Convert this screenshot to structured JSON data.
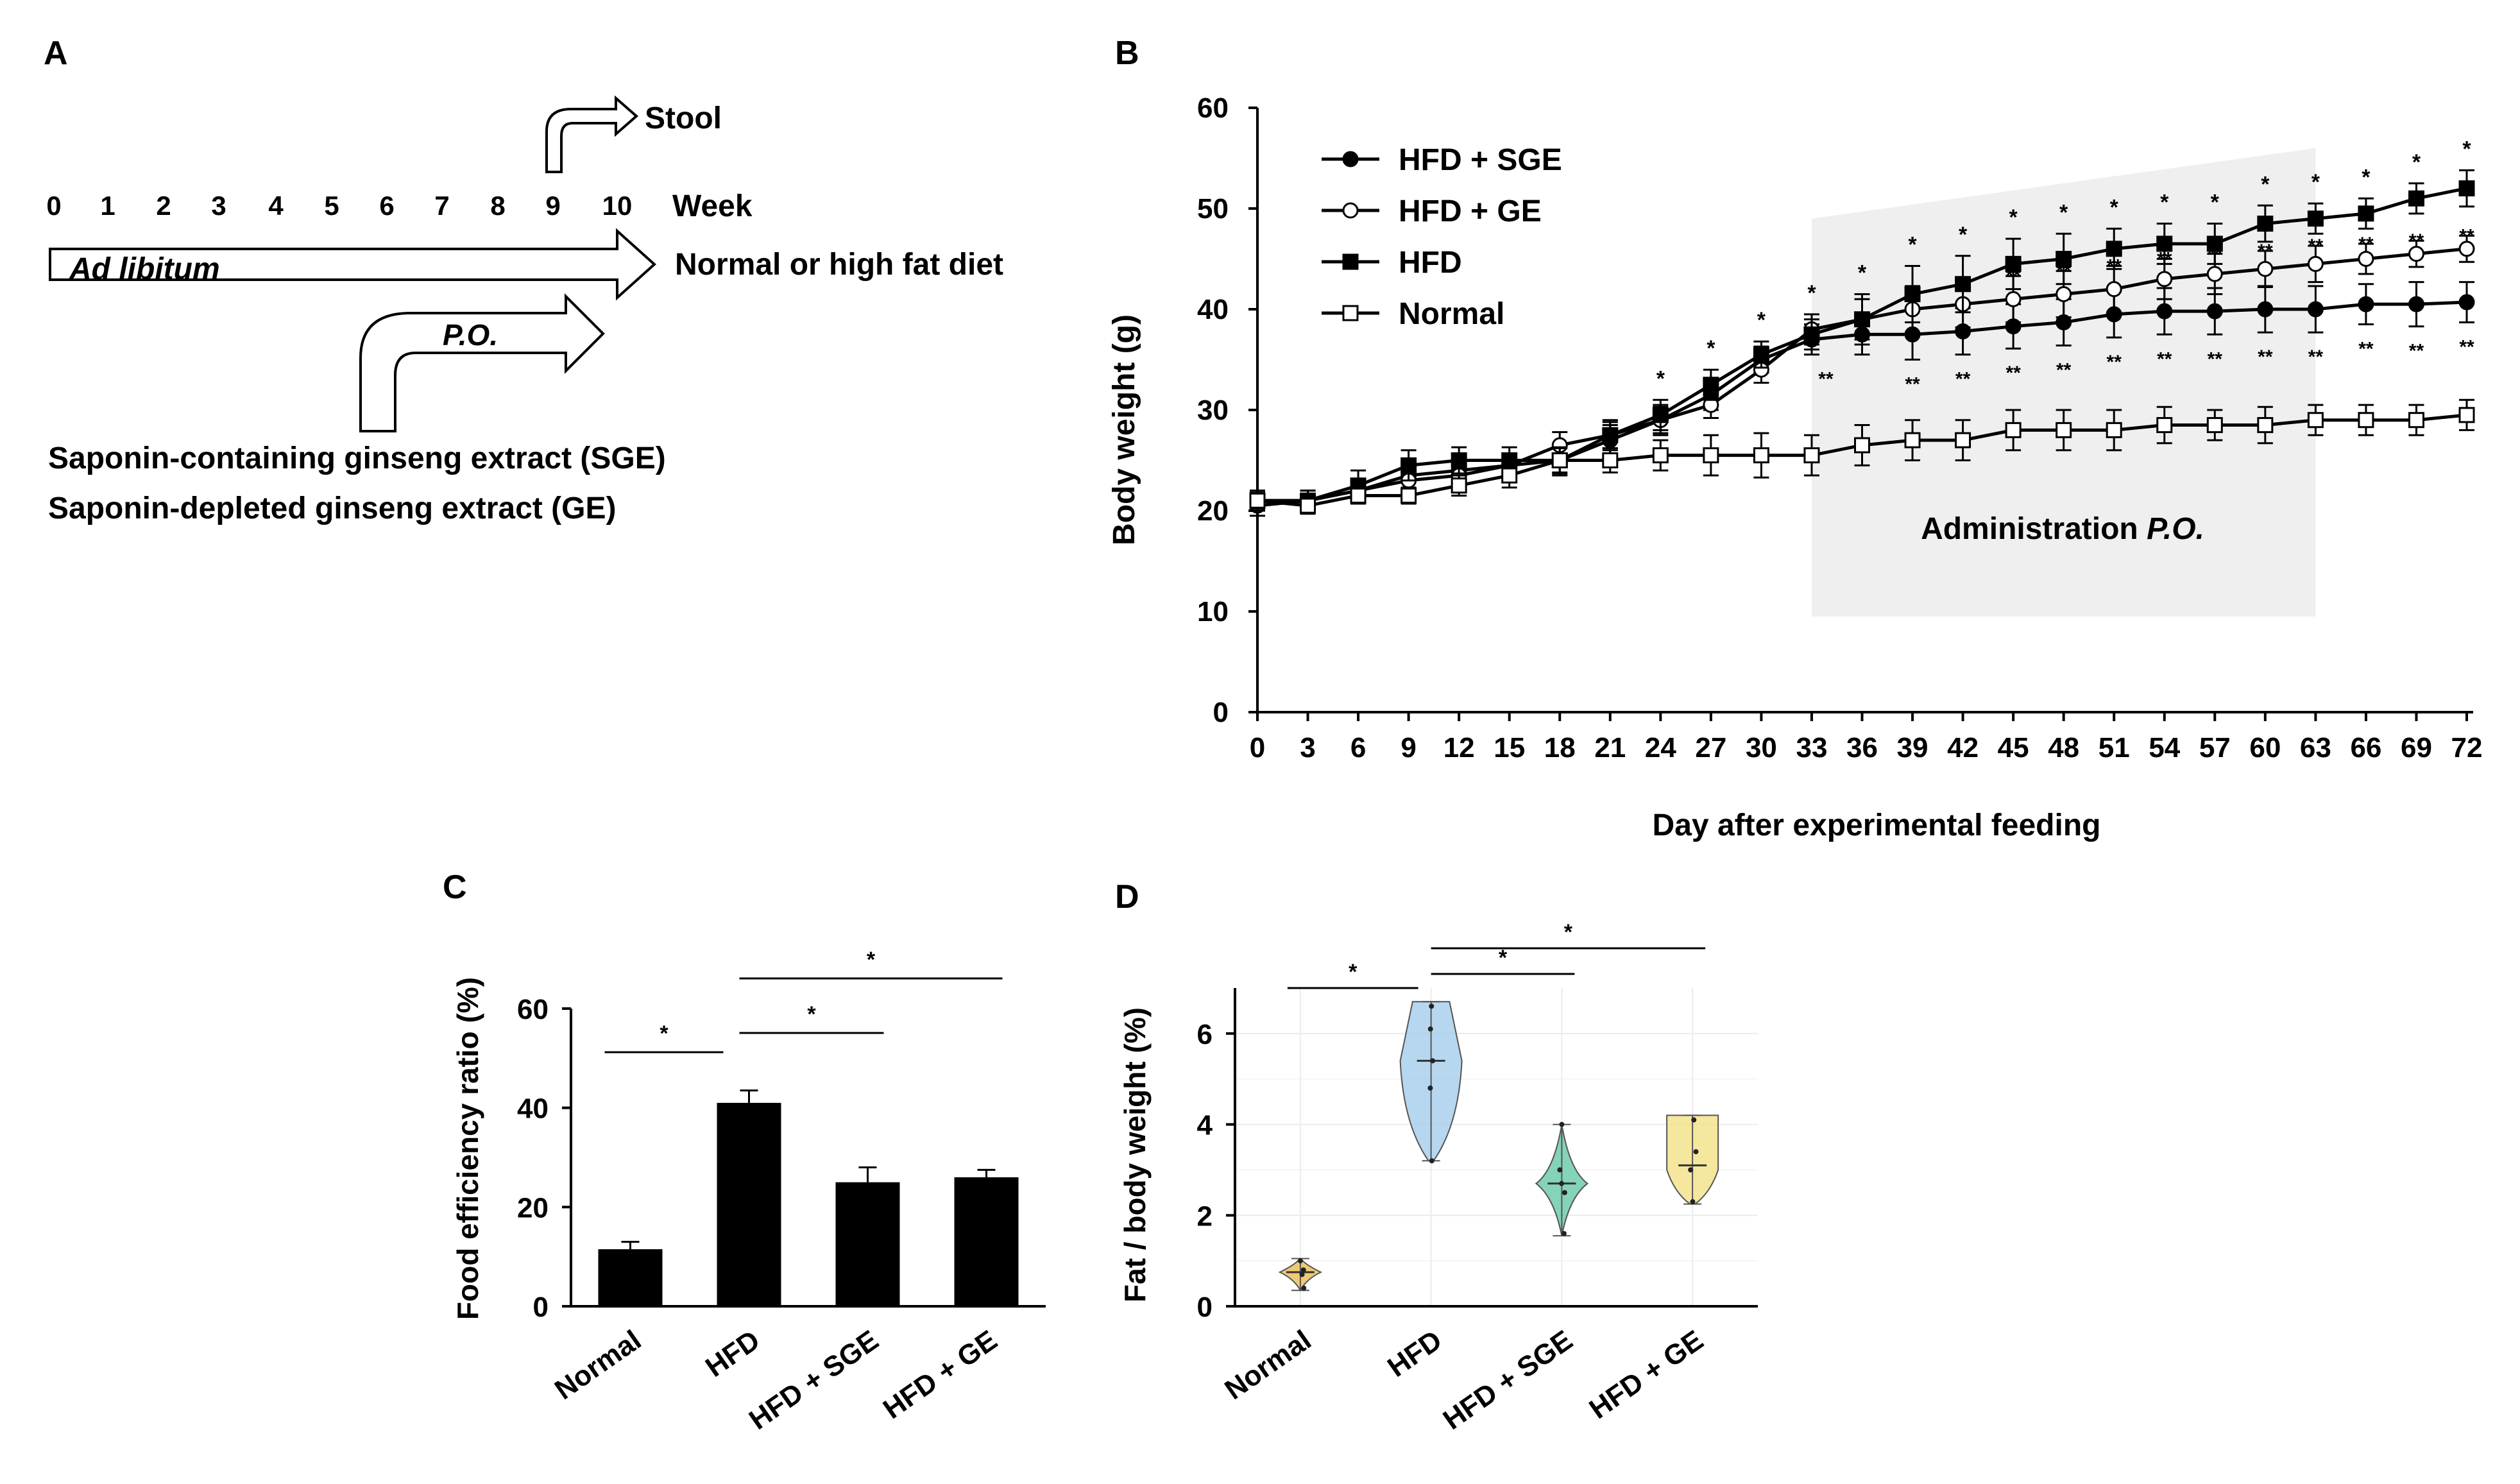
{
  "panels": {
    "A": {
      "letter": "A",
      "weeks": [
        "0",
        "1",
        "2",
        "3",
        "4",
        "5",
        "6",
        "7",
        "8",
        "9",
        "10"
      ],
      "week_label": "Week",
      "stool_label": "Stool",
      "adlib_label": "Ad libitum",
      "diet_label": "Normal or high fat diet",
      "po_label": "P.O.",
      "sge_label": "Saponin-containing ginseng extract (SGE)",
      "ge_label": "Saponin-depleted ginseng extract (GE)"
    },
    "B": {
      "letter": "B"
    },
    "C": {
      "letter": "C"
    },
    "D": {
      "letter": "D"
    }
  },
  "chart_data": [
    {
      "panel": "B",
      "type": "line",
      "xlabel": "Day after experimental feeding",
      "ylabel": "Body weight (g)",
      "ylim": [
        0,
        60
      ],
      "yticks": [
        0,
        10,
        20,
        30,
        40,
        50,
        60
      ],
      "x": [
        0,
        3,
        6,
        9,
        12,
        15,
        18,
        21,
        24,
        27,
        30,
        33,
        36,
        39,
        42,
        45,
        48,
        51,
        54,
        57,
        60,
        63,
        66,
        69,
        72
      ],
      "shade_label_prefix": "Administration ",
      "shade_label_italic": "P.O.",
      "shade_range_days": [
        33,
        63
      ],
      "shade_top_values": [
        49,
        56
      ],
      "star_single": "*",
      "star_double": "**",
      "series": [
        {
          "name": "HFD + SGE",
          "marker": "filled-circle",
          "values": [
            21,
            21,
            22,
            23.5,
            24,
            24.5,
            25,
            27,
            29,
            31.5,
            35,
            37,
            37.5,
            37.5,
            37.8,
            38.3,
            38.7,
            39.5,
            39.8,
            39.8,
            40,
            40,
            40.5,
            40.5,
            40.7
          ],
          "errors": [
            1,
            1,
            1,
            1.3,
            1.3,
            1.2,
            1.5,
            1.5,
            1.5,
            1.5,
            1.3,
            1.5,
            2,
            2.5,
            2.3,
            2.2,
            2.3,
            2.3,
            2.3,
            2.3,
            2.3,
            2.3,
            2,
            2.2,
            2
          ]
        },
        {
          "name": "HFD + GE",
          "marker": "open-circle",
          "values": [
            20.5,
            21,
            22,
            23,
            23.5,
            24.5,
            26.5,
            27.5,
            29,
            30.5,
            34,
            38,
            39,
            40,
            40.5,
            41,
            41.5,
            42,
            43,
            43.5,
            44,
            44.5,
            45,
            45.5,
            46
          ],
          "errors": [
            1,
            1,
            1,
            1,
            1,
            1,
            1.3,
            1.3,
            1.3,
            1.3,
            1.3,
            1.5,
            2,
            2.3,
            2.3,
            2.3,
            2.3,
            2.3,
            2,
            2,
            1.8,
            1.8,
            1.5,
            1.3,
            1.3
          ]
        },
        {
          "name": "HFD",
          "marker": "filled-square",
          "values": [
            21,
            21,
            22.5,
            24.5,
            25,
            25,
            25,
            27.5,
            29.5,
            32.5,
            35.5,
            37.5,
            39,
            41.5,
            42.5,
            44.5,
            45,
            46,
            46.5,
            46.5,
            48.5,
            49,
            49.5,
            51,
            52
          ],
          "errors": [
            1,
            1,
            1.5,
            1.5,
            1.3,
            1.3,
            1.3,
            1.5,
            1.5,
            1.5,
            1.3,
            1.5,
            2.5,
            2.8,
            2.8,
            2.5,
            2.5,
            2,
            2,
            2,
            1.8,
            1.5,
            1.5,
            1.5,
            1.8
          ]
        },
        {
          "name": "Normal",
          "marker": "open-square",
          "values": [
            21,
            20.5,
            21.5,
            21.5,
            22.5,
            23.5,
            25,
            25,
            25.5,
            25.5,
            25.5,
            25.5,
            26.5,
            27,
            27,
            28,
            28,
            28,
            28.5,
            28.5,
            28.5,
            29,
            29,
            29,
            29.5
          ],
          "errors": [
            0.8,
            0.8,
            0.8,
            0.8,
            1,
            1.2,
            1.2,
            1.2,
            1.5,
            2,
            2.2,
            2,
            2,
            2,
            2,
            2,
            2,
            2,
            1.8,
            1.5,
            1.8,
            1.5,
            1.5,
            1.5,
            1.5
          ]
        }
      ],
      "stars_above": [
        {
          "day": 24,
          "label": "*"
        },
        {
          "day": 27,
          "label": "*"
        },
        {
          "day": 30,
          "label": "*"
        },
        {
          "day": 33,
          "label": "*"
        },
        {
          "day": 36,
          "label": "*"
        },
        {
          "day": 39,
          "label": "*"
        },
        {
          "day": 42,
          "label": "*"
        },
        {
          "day": 45,
          "label": "*"
        },
        {
          "day": 48,
          "label": "*"
        },
        {
          "day": 51,
          "label": "*"
        },
        {
          "day": 54,
          "label": "*"
        },
        {
          "day": 57,
          "label": "*"
        },
        {
          "day": 60,
          "label": "*"
        },
        {
          "day": 63,
          "label": "*"
        },
        {
          "day": 66,
          "label": "*"
        },
        {
          "day": 69,
          "label": "*"
        },
        {
          "day": 72,
          "label": "*"
        }
      ],
      "stars_mid": [
        {
          "day": 45,
          "label": "**"
        },
        {
          "day": 48,
          "label": "**"
        },
        {
          "day": 51,
          "label": "**"
        },
        {
          "day": 54,
          "label": "**"
        },
        {
          "day": 57,
          "label": "**"
        },
        {
          "day": 60,
          "label": "**"
        },
        {
          "day": 63,
          "label": "**"
        },
        {
          "day": 66,
          "label": "**"
        },
        {
          "day": 69,
          "label": "**"
        },
        {
          "day": 72,
          "label": "**"
        }
      ],
      "stars_below": [
        {
          "day": 33,
          "label": "**"
        },
        {
          "day": 39,
          "label": "**"
        },
        {
          "day": 42,
          "label": "**"
        },
        {
          "day": 45,
          "label": "**"
        },
        {
          "day": 48,
          "label": "**"
        },
        {
          "day": 51,
          "label": "**"
        },
        {
          "day": 54,
          "label": "**"
        },
        {
          "day": 57,
          "label": "**"
        },
        {
          "day": 60,
          "label": "**"
        },
        {
          "day": 63,
          "label": "**"
        },
        {
          "day": 66,
          "label": "**"
        },
        {
          "day": 69,
          "label": "**"
        },
        {
          "day": 72,
          "label": "**"
        }
      ]
    },
    {
      "panel": "C",
      "type": "bar",
      "ylabel": "Food efficiency ratio (%)",
      "ylim": [
        0,
        60
      ],
      "yticks": [
        0,
        20,
        40,
        60
      ],
      "categories": [
        "Normal",
        "HFD",
        "HFD + SGE",
        "HFD + GE"
      ],
      "values": [
        11.5,
        41,
        25,
        26
      ],
      "errors": [
        1.5,
        2.5,
        3,
        1.5
      ],
      "color": "#000000",
      "significance": [
        {
          "from": 0,
          "to": 1,
          "label": "*",
          "level": 0
        },
        {
          "from": 1,
          "to": 2,
          "label": "*",
          "level": 1
        },
        {
          "from": 1,
          "to": 3,
          "label": "*",
          "level": 2
        }
      ]
    },
    {
      "panel": "D",
      "type": "violin",
      "ylabel": "Fat / body weight (%)",
      "ylim": [
        0,
        7
      ],
      "yticks": [
        0,
        2,
        4,
        6
      ],
      "categories": [
        "Normal",
        "HFD",
        "HFD + SGE",
        "HFD + GE"
      ],
      "colors": [
        "#e8b84a",
        "#9ecae9",
        "#5cc4a0",
        "#f2df7c"
      ],
      "groups": [
        {
          "name": "Normal",
          "min": 0.35,
          "max": 1.05,
          "q1": 0.6,
          "median": 0.75,
          "q3": 0.9,
          "points": [
            0.4,
            0.7,
            0.8,
            1.0
          ]
        },
        {
          "name": "HFD",
          "min": 3.2,
          "max": 6.7,
          "q1": 4.5,
          "median": 5.4,
          "q3": 6.4,
          "points": [
            3.2,
            4.8,
            5.4,
            6.1,
            6.6
          ]
        },
        {
          "name": "HFD + SGE",
          "min": 1.55,
          "max": 4.0,
          "q1": 2.4,
          "median": 2.7,
          "q3": 3.0,
          "points": [
            1.6,
            2.5,
            2.7,
            3.0,
            4.0
          ]
        },
        {
          "name": "HFD + GE",
          "min": 2.25,
          "max": 4.2,
          "q1": 2.7,
          "median": 3.1,
          "q3": 3.8,
          "points": [
            2.3,
            3.0,
            3.4,
            4.1
          ]
        }
      ],
      "significance": [
        {
          "from": 0,
          "to": 1,
          "label": "*",
          "level": 0
        },
        {
          "from": 1,
          "to": 2,
          "label": "*",
          "level": 1
        },
        {
          "from": 1,
          "to": 3,
          "label": "*",
          "level": 2
        }
      ]
    }
  ]
}
